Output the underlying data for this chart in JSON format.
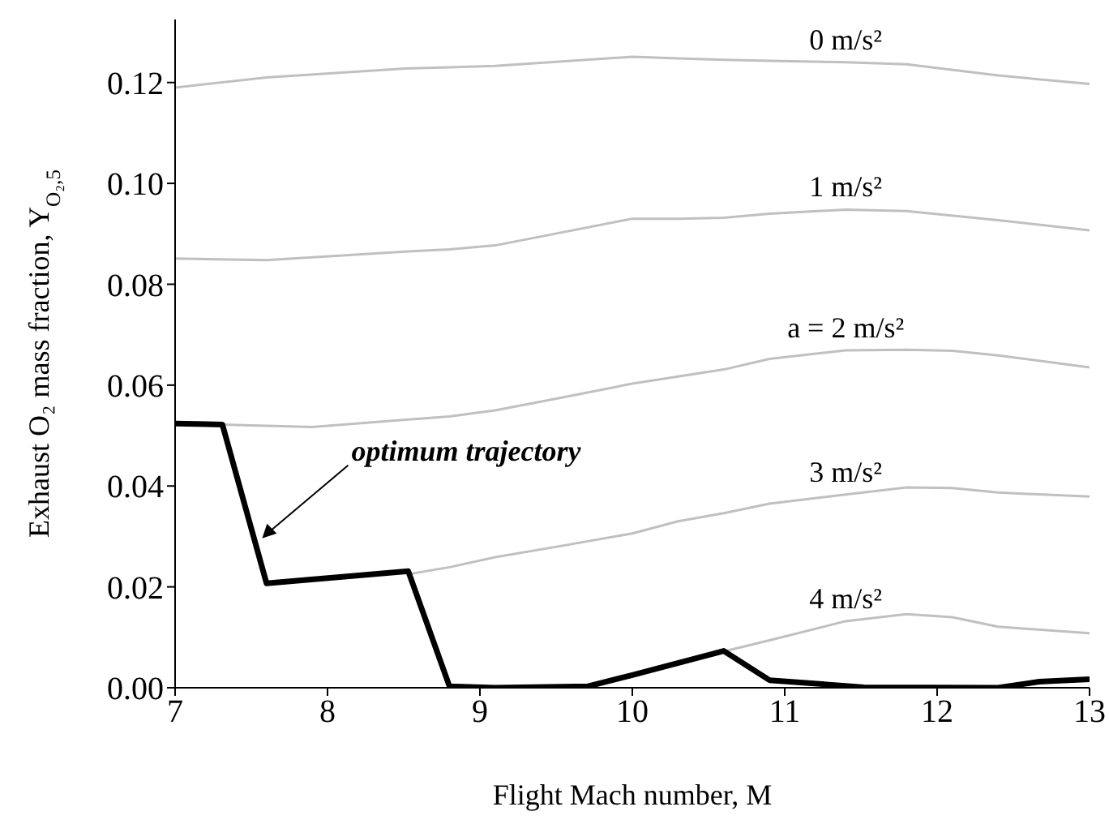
{
  "chart_data": {
    "type": "line",
    "xlabel": "Flight Mach number, M",
    "ylabel": "Exhaust O₂  mass fraction, Y$_{O₂,5}$",
    "xlim": [
      7,
      13
    ],
    "xticks": [
      7,
      8,
      9,
      10,
      11,
      12,
      13
    ],
    "ylim": [
      0,
      0.1325
    ],
    "yticks": [
      {
        "value": 0,
        "label": "0.00"
      },
      {
        "value": 0.02,
        "label": "0.02"
      },
      {
        "value": 0.04,
        "label": "0.04"
      },
      {
        "value": 0.06,
        "label": "0.06"
      },
      {
        "value": 0.08,
        "label": "0.08"
      },
      {
        "value": 0.1,
        "label": "0.10"
      },
      {
        "value": 0.12,
        "label": "0.12"
      }
    ],
    "grid": false,
    "legend": false,
    "marker": "none",
    "line_style": "solid",
    "series": [
      {
        "name": "0 m/s²",
        "color": "#c0c0c0",
        "x": [
          7,
          7.6,
          8.53,
          8.8,
          9.1,
          10,
          10.3,
          10.6,
          10.9,
          11.4,
          11.8,
          12.4,
          13
        ],
        "values": [
          0.119,
          0.121,
          0.1228,
          0.123,
          0.1233,
          0.1251,
          0.1248,
          0.1245,
          0.1243,
          0.124,
          0.1236,
          0.1214,
          0.1197
        ]
      },
      {
        "name": "1 m/s²",
        "color": "#c0c0c0",
        "x": [
          7,
          7.6,
          8.53,
          8.8,
          9.1,
          10,
          10.3,
          10.6,
          10.9,
          11.4,
          11.8,
          12.4,
          13
        ],
        "values": [
          0.0851,
          0.0848,
          0.0865,
          0.0869,
          0.0877,
          0.093,
          0.093,
          0.0932,
          0.094,
          0.0948,
          0.0945,
          0.0927,
          0.0907
        ]
      },
      {
        "name": "a = 2 m/s²",
        "color": "#c0c0c0",
        "x": [
          7,
          7.3,
          7.9,
          8.8,
          9.1,
          9.55,
          10,
          10.6,
          10.9,
          11.4,
          11.8,
          12.1,
          12.4,
          13
        ],
        "values": [
          0.0524,
          0.0522,
          0.0517,
          0.0538,
          0.055,
          0.0576,
          0.0603,
          0.0631,
          0.0652,
          0.0669,
          0.067,
          0.0668,
          0.0659,
          0.0635
        ]
      },
      {
        "name": "3 m/s²",
        "color": "#c0c0c0",
        "x": [
          8.53,
          8.8,
          9.1,
          9.55,
          10,
          10.3,
          10.6,
          10.9,
          11.4,
          11.8,
          12.1,
          12.4,
          13
        ],
        "values": [
          0.0225,
          0.0239,
          0.0259,
          0.0282,
          0.0306,
          0.033,
          0.0346,
          0.0365,
          0.0383,
          0.0397,
          0.0396,
          0.0387,
          0.0379
        ]
      },
      {
        "name": "4 m/s²",
        "color": "#c0c0c0",
        "x": [
          10.6,
          10.9,
          11.4,
          11.8,
          12.1,
          12.4,
          13
        ],
        "values": [
          0.0072,
          0.0094,
          0.0132,
          0.0146,
          0.014,
          0.0121,
          0.0108
        ]
      },
      {
        "color": "#000000",
        "x": [
          7,
          7.31,
          7.6,
          8.53,
          8.8,
          9.1,
          9.71,
          10,
          10.6,
          10.9,
          11.52,
          12.4,
          12.67,
          13
        ],
        "values": [
          0.0524,
          0.0522,
          0.0207,
          0.0231,
          0.0003,
          0,
          0.0003,
          0.0025,
          0.0073,
          0.0015,
          0.0001,
          0,
          0.0012,
          0.0017
        ]
      }
    ],
    "annotations": [
      {
        "text": "optimum trajectory",
        "x": 7.55,
        "y": 0.029
      }
    ]
  }
}
